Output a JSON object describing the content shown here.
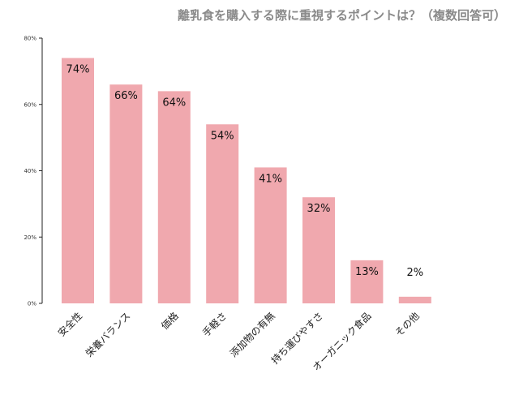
{
  "chart_data": {
    "type": "bar",
    "title": "離乳食を購入する際に重視するポイントは？（複数回答可）",
    "xlabel": "",
    "ylabel": "",
    "categories": [
      "安全性",
      "栄養バランス",
      "価格",
      "手軽さ",
      "添加物の有無",
      "持ち運びやすさ",
      "オーガニック食品",
      "その他"
    ],
    "values": [
      74,
      66,
      64,
      54,
      41,
      32,
      13,
      2
    ],
    "value_labels": [
      "74%",
      "66%",
      "64%",
      "54%",
      "41%",
      "32%",
      "13%",
      "2%"
    ],
    "ylim": [
      0,
      80
    ],
    "yticks": [
      0,
      20,
      40,
      60,
      80
    ],
    "ytick_labels": [
      "0%",
      "20%",
      "40%",
      "60%",
      "80%"
    ],
    "grid": false,
    "bar_color": "#f0a8ae"
  }
}
